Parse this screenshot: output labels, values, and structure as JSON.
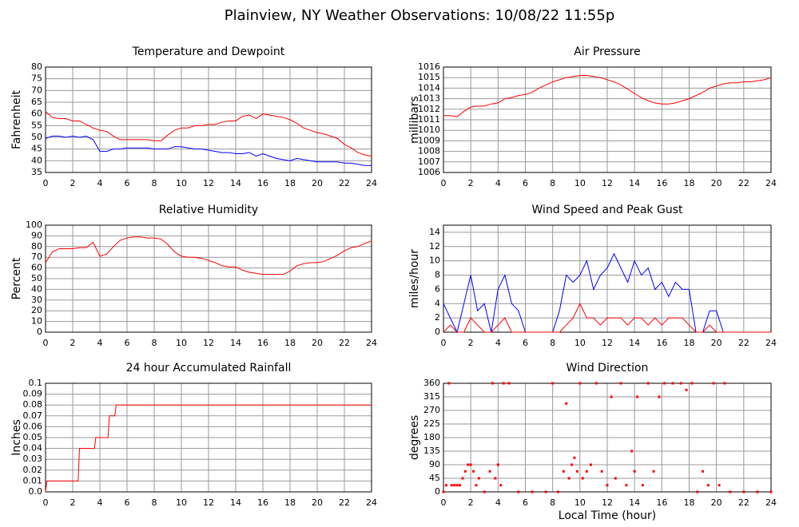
{
  "title": "Plainview, NY Weather Observations: 10/08/22 11:55p",
  "chart_data": [
    {
      "type": "line",
      "title": "Temperature and Dewpoint",
      "ylabel": "Fahrenheit",
      "x": [
        0,
        0.5,
        1,
        1.5,
        2,
        2.5,
        3,
        3.5,
        4,
        4.5,
        5,
        5.5,
        6,
        6.5,
        7,
        7.5,
        8,
        8.5,
        9,
        9.5,
        10,
        10.5,
        11,
        11.5,
        12,
        12.5,
        13,
        13.5,
        14,
        14.5,
        15,
        15.5,
        16,
        16.5,
        17,
        17.5,
        18,
        18.5,
        19,
        19.5,
        20,
        20.5,
        21,
        21.5,
        22,
        22.5,
        23,
        23.5,
        24
      ],
      "series": [
        {
          "color": "#ff0000",
          "values": [
            61,
            58.5,
            58,
            58,
            57,
            57,
            55.5,
            54,
            53,
            52.5,
            50.5,
            49,
            49,
            49,
            49,
            49,
            48.5,
            48.5,
            51,
            53,
            54,
            54,
            55,
            55,
            55.5,
            55.5,
            56.5,
            57,
            57,
            59,
            59.5,
            58,
            60,
            59.5,
            59,
            58.5,
            57.5,
            56,
            54,
            53,
            52,
            51.5,
            50.5,
            49.5,
            47,
            45.5,
            43.5,
            42.5,
            42
          ]
        },
        {
          "color": "#0000ff",
          "values": [
            49.5,
            50.5,
            50.5,
            50,
            50.5,
            50,
            50.5,
            49,
            44,
            44,
            45,
            45,
            45.5,
            45.5,
            45.5,
            45.5,
            45,
            45,
            45,
            46,
            46,
            45.5,
            45,
            45,
            44.5,
            44,
            43.5,
            43.5,
            43,
            43,
            43.5,
            42,
            43,
            42,
            41,
            40.5,
            40,
            41,
            40.5,
            40,
            39.5,
            39.5,
            39.5,
            39.5,
            39,
            39,
            38.5,
            38,
            38
          ]
        }
      ],
      "xlim": [
        0,
        24
      ],
      "xticks": [
        0,
        2,
        4,
        6,
        8,
        10,
        12,
        14,
        16,
        18,
        20,
        22,
        24
      ],
      "ylim": [
        35,
        80
      ],
      "yticks": [
        35,
        40,
        45,
        50,
        55,
        60,
        65,
        70,
        75,
        80
      ],
      "grid": true
    },
    {
      "type": "line",
      "title": "Air Pressure",
      "ylabel": "millibars",
      "x": [
        0,
        0.5,
        1,
        1.5,
        2,
        2.5,
        3,
        3.5,
        4,
        4.5,
        5,
        5.5,
        6,
        6.5,
        7,
        7.5,
        8,
        8.5,
        9,
        9.5,
        10,
        10.5,
        11,
        11.5,
        12,
        12.5,
        13,
        13.5,
        14,
        14.5,
        15,
        15.5,
        16,
        16.5,
        17,
        17.5,
        18,
        18.5,
        19,
        19.5,
        20,
        20.5,
        21,
        21.5,
        22,
        22.5,
        23,
        23.5,
        24
      ],
      "series": [
        {
          "color": "#ff0000",
          "values": [
            1011.4,
            1011.4,
            1011.3,
            1011.8,
            1012.2,
            1012.3,
            1012.3,
            1012.5,
            1012.6,
            1013,
            1013.1,
            1013.3,
            1013.4,
            1013.6,
            1014,
            1014.3,
            1014.6,
            1014.8,
            1015,
            1015.1,
            1015.2,
            1015.2,
            1015.1,
            1015,
            1014.8,
            1014.6,
            1014.3,
            1013.9,
            1013.5,
            1013.1,
            1012.8,
            1012.6,
            1012.5,
            1012.5,
            1012.6,
            1012.8,
            1013,
            1013.3,
            1013.6,
            1014,
            1014.2,
            1014.4,
            1014.5,
            1014.5,
            1014.6,
            1014.6,
            1014.7,
            1014.8,
            1015
          ]
        }
      ],
      "xlim": [
        0,
        24
      ],
      "xticks": [
        0,
        2,
        4,
        6,
        8,
        10,
        12,
        14,
        16,
        18,
        20,
        22,
        24
      ],
      "ylim": [
        1006,
        1016
      ],
      "yticks": [
        1006,
        1007,
        1008,
        1009,
        1010,
        1011,
        1012,
        1013,
        1014,
        1015,
        1016
      ],
      "grid": true
    },
    {
      "type": "line",
      "title": "Relative Humidity",
      "ylabel": "Percent",
      "x": [
        0,
        0.5,
        1,
        1.5,
        2,
        2.5,
        3,
        3.5,
        4,
        4.5,
        5,
        5.5,
        6,
        6.5,
        7,
        7.5,
        8,
        8.5,
        9,
        9.5,
        10,
        10.5,
        11,
        11.5,
        12,
        12.5,
        13,
        13.5,
        14,
        14.5,
        15,
        15.5,
        16,
        16.5,
        17,
        17.5,
        18,
        18.5,
        19,
        19.5,
        20,
        20.5,
        21,
        21.5,
        22,
        22.5,
        23,
        23.5,
        24
      ],
      "series": [
        {
          "color": "#ff0000",
          "values": [
            65,
            75,
            78,
            78,
            78,
            79,
            79,
            84,
            71,
            73,
            80,
            86,
            88,
            89,
            89,
            88,
            88,
            87,
            82,
            75,
            71,
            70,
            70,
            69,
            67,
            65,
            62,
            61,
            61,
            58,
            56,
            55,
            54,
            54,
            54,
            54,
            57,
            62,
            64,
            65,
            65,
            66,
            69,
            72,
            76,
            79,
            80,
            83,
            85
          ]
        }
      ],
      "xlim": [
        0,
        24
      ],
      "xticks": [
        0,
        2,
        4,
        6,
        8,
        10,
        12,
        14,
        16,
        18,
        20,
        22,
        24
      ],
      "ylim": [
        0,
        100
      ],
      "yticks": [
        0,
        10,
        20,
        30,
        40,
        50,
        60,
        70,
        80,
        90,
        100
      ],
      "grid": true
    },
    {
      "type": "line",
      "title": "Wind Speed and Peak Gust",
      "ylabel": "miles/hour",
      "x": [
        0,
        0.5,
        1,
        1.5,
        2,
        2.5,
        3,
        3.5,
        4,
        4.5,
        5,
        5.5,
        6,
        6.5,
        7,
        7.5,
        8,
        8.5,
        9,
        9.5,
        10,
        10.5,
        11,
        11.5,
        12,
        12.5,
        13,
        13.5,
        14,
        14.5,
        15,
        15.5,
        16,
        16.5,
        17,
        17.5,
        18,
        18.5,
        19,
        19.5,
        20,
        20.5,
        21,
        21.5,
        22,
        22.5,
        23,
        23.5,
        24
      ],
      "series": [
        {
          "color": "#0000ff",
          "values": [
            4,
            2,
            0,
            4,
            8,
            3,
            4,
            0,
            6,
            8,
            4,
            3,
            0,
            0,
            0,
            0,
            0,
            3,
            8,
            7,
            8,
            10,
            6,
            8,
            9,
            11,
            9,
            7,
            10,
            8,
            9,
            6,
            7,
            5,
            7,
            6,
            6,
            0,
            0,
            3,
            3,
            0,
            0,
            0,
            0,
            0,
            0,
            0,
            0
          ]
        },
        {
          "color": "#ff0000",
          "values": [
            0,
            1,
            0,
            0,
            2,
            1,
            0,
            0,
            1,
            2,
            0,
            0,
            0,
            0,
            0,
            0,
            0,
            0,
            1,
            2,
            4,
            2,
            2,
            1,
            2,
            2,
            2,
            1,
            2,
            2,
            1,
            2,
            1,
            2,
            2,
            2,
            1,
            0,
            0,
            1,
            0,
            0,
            0,
            0,
            0,
            0,
            0,
            0,
            0
          ]
        }
      ],
      "xlim": [
        0,
        24
      ],
      "xticks": [
        0,
        2,
        4,
        6,
        8,
        10,
        12,
        14,
        16,
        18,
        20,
        22,
        24
      ],
      "ylim": [
        0,
        15
      ],
      "yticks": [
        0,
        2,
        4,
        6,
        8,
        10,
        12,
        14
      ],
      "grid": true
    },
    {
      "type": "line",
      "title": "24 hour Accumulated Rainfall",
      "ylabel": "Inches",
      "x": [
        0,
        0.1,
        2.4,
        2.5,
        3.6,
        3.7,
        4.6,
        4.7,
        5.1,
        5.2,
        24
      ],
      "series": [
        {
          "color": "#ff0000",
          "values": [
            0,
            0.01,
            0.01,
            0.04,
            0.04,
            0.05,
            0.05,
            0.07,
            0.07,
            0.08,
            0.08
          ]
        }
      ],
      "xlim": [
        0,
        24
      ],
      "xticks": [
        0,
        2,
        4,
        6,
        8,
        10,
        12,
        14,
        16,
        18,
        20,
        22,
        24
      ],
      "ylim": [
        0,
        0.1
      ],
      "yticks": [
        {
          "value": 0,
          "label": "0.0"
        },
        0.01,
        0.02,
        0.03,
        0.04,
        0.05,
        0.06,
        0.07,
        0.08,
        0.09,
        0.1
      ],
      "grid": true
    },
    {
      "type": "scatter",
      "title": "Wind Direction",
      "ylabel": "degrees",
      "xlabel": "Local Time (hour)",
      "x": [
        0,
        0.2,
        0.4,
        0.6,
        0.8,
        1.0,
        1.2,
        1.4,
        1.6,
        1.8,
        2.0,
        2.2,
        2.4,
        2.6,
        3.0,
        3.4,
        3.6,
        3.8,
        4.0,
        4.2,
        4.4,
        4.8,
        5.5,
        6.5,
        7.5,
        8.0,
        8.4,
        8.8,
        9.0,
        9.2,
        9.4,
        9.6,
        9.8,
        10.0,
        10.2,
        10.5,
        10.8,
        11.2,
        11.6,
        12.0,
        12.3,
        12.6,
        13.0,
        13.4,
        13.8,
        14.0,
        14.2,
        14.6,
        15.0,
        15.4,
        15.8,
        16.2,
        16.8,
        17.4,
        17.8,
        18.2,
        18.6,
        19.0,
        19.4,
        19.8,
        20.2,
        20.6,
        21,
        22,
        23,
        24
      ],
      "series": [
        {
          "color": "#ff0000",
          "values": [
            0,
            22,
            360,
            22,
            22,
            22,
            22,
            45,
            68,
            90,
            90,
            68,
            22,
            45,
            0,
            68,
            360,
            45,
            90,
            22,
            360,
            360,
            0,
            0,
            0,
            360,
            0,
            68,
            293,
            45,
            90,
            113,
            68,
            360,
            45,
            68,
            90,
            360,
            68,
            22,
            315,
            45,
            360,
            22,
            135,
            68,
            315,
            22,
            360,
            68,
            315,
            360,
            360,
            360,
            338,
            360,
            0,
            68,
            22,
            360,
            22,
            360,
            0,
            0,
            0,
            0
          ]
        }
      ],
      "xlim": [
        0,
        24
      ],
      "xticks": [
        0,
        2,
        4,
        6,
        8,
        10,
        12,
        14,
        16,
        18,
        20,
        22,
        24
      ],
      "ylim": [
        0,
        360
      ],
      "yticks": [
        0,
        45,
        90,
        135,
        180,
        225,
        270,
        315,
        360
      ],
      "grid": true
    }
  ]
}
